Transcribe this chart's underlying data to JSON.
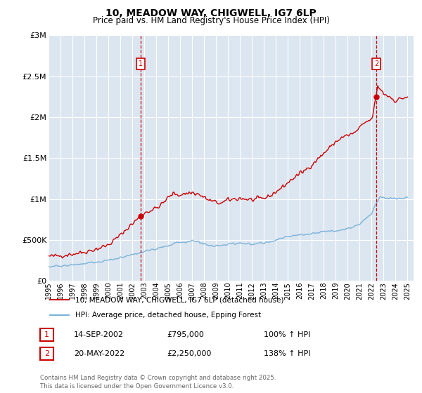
{
  "title": "10, MEADOW WAY, CHIGWELL, IG7 6LP",
  "subtitle": "Price paid vs. HM Land Registry's House Price Index (HPI)",
  "bg_color": "#dce6f1",
  "red_color": "#cc0000",
  "blue_color": "#7ab3d9",
  "dot_color": "#cc0000",
  "annotation1": {
    "label": "1",
    "date_x": 2002.71,
    "price": 795000,
    "text": "14-SEP-2002",
    "amount": "£795,000",
    "pct": "100% ↑ HPI"
  },
  "annotation2": {
    "label": "2",
    "date_x": 2022.38,
    "price": 2250000,
    "text": "20-MAY-2022",
    "amount": "£2,250,000",
    "pct": "138% ↑ HPI"
  },
  "legend_line1": "10, MEADOW WAY, CHIGWELL, IG7 6LP (detached house)",
  "legend_line2": "HPI: Average price, detached house, Epping Forest",
  "footer": "Contains HM Land Registry data © Crown copyright and database right 2025.\nThis data is licensed under the Open Government Licence v3.0.",
  "ylim": [
    0,
    3000000
  ],
  "xlim_start": 1995.0,
  "xlim_end": 2025.5,
  "yticks": [
    0,
    500000,
    1000000,
    1500000,
    2000000,
    2500000,
    3000000
  ],
  "ytick_labels": [
    "£0",
    "£500K",
    "£1M",
    "£1.5M",
    "£2M",
    "£2.5M",
    "£3M"
  ],
  "xtick_years": [
    1995,
    1996,
    1997,
    1998,
    1999,
    2000,
    2001,
    2002,
    2003,
    2004,
    2005,
    2006,
    2007,
    2008,
    2009,
    2010,
    2011,
    2012,
    2013,
    2014,
    2015,
    2016,
    2017,
    2018,
    2019,
    2020,
    2021,
    2022,
    2023,
    2024,
    2025
  ]
}
